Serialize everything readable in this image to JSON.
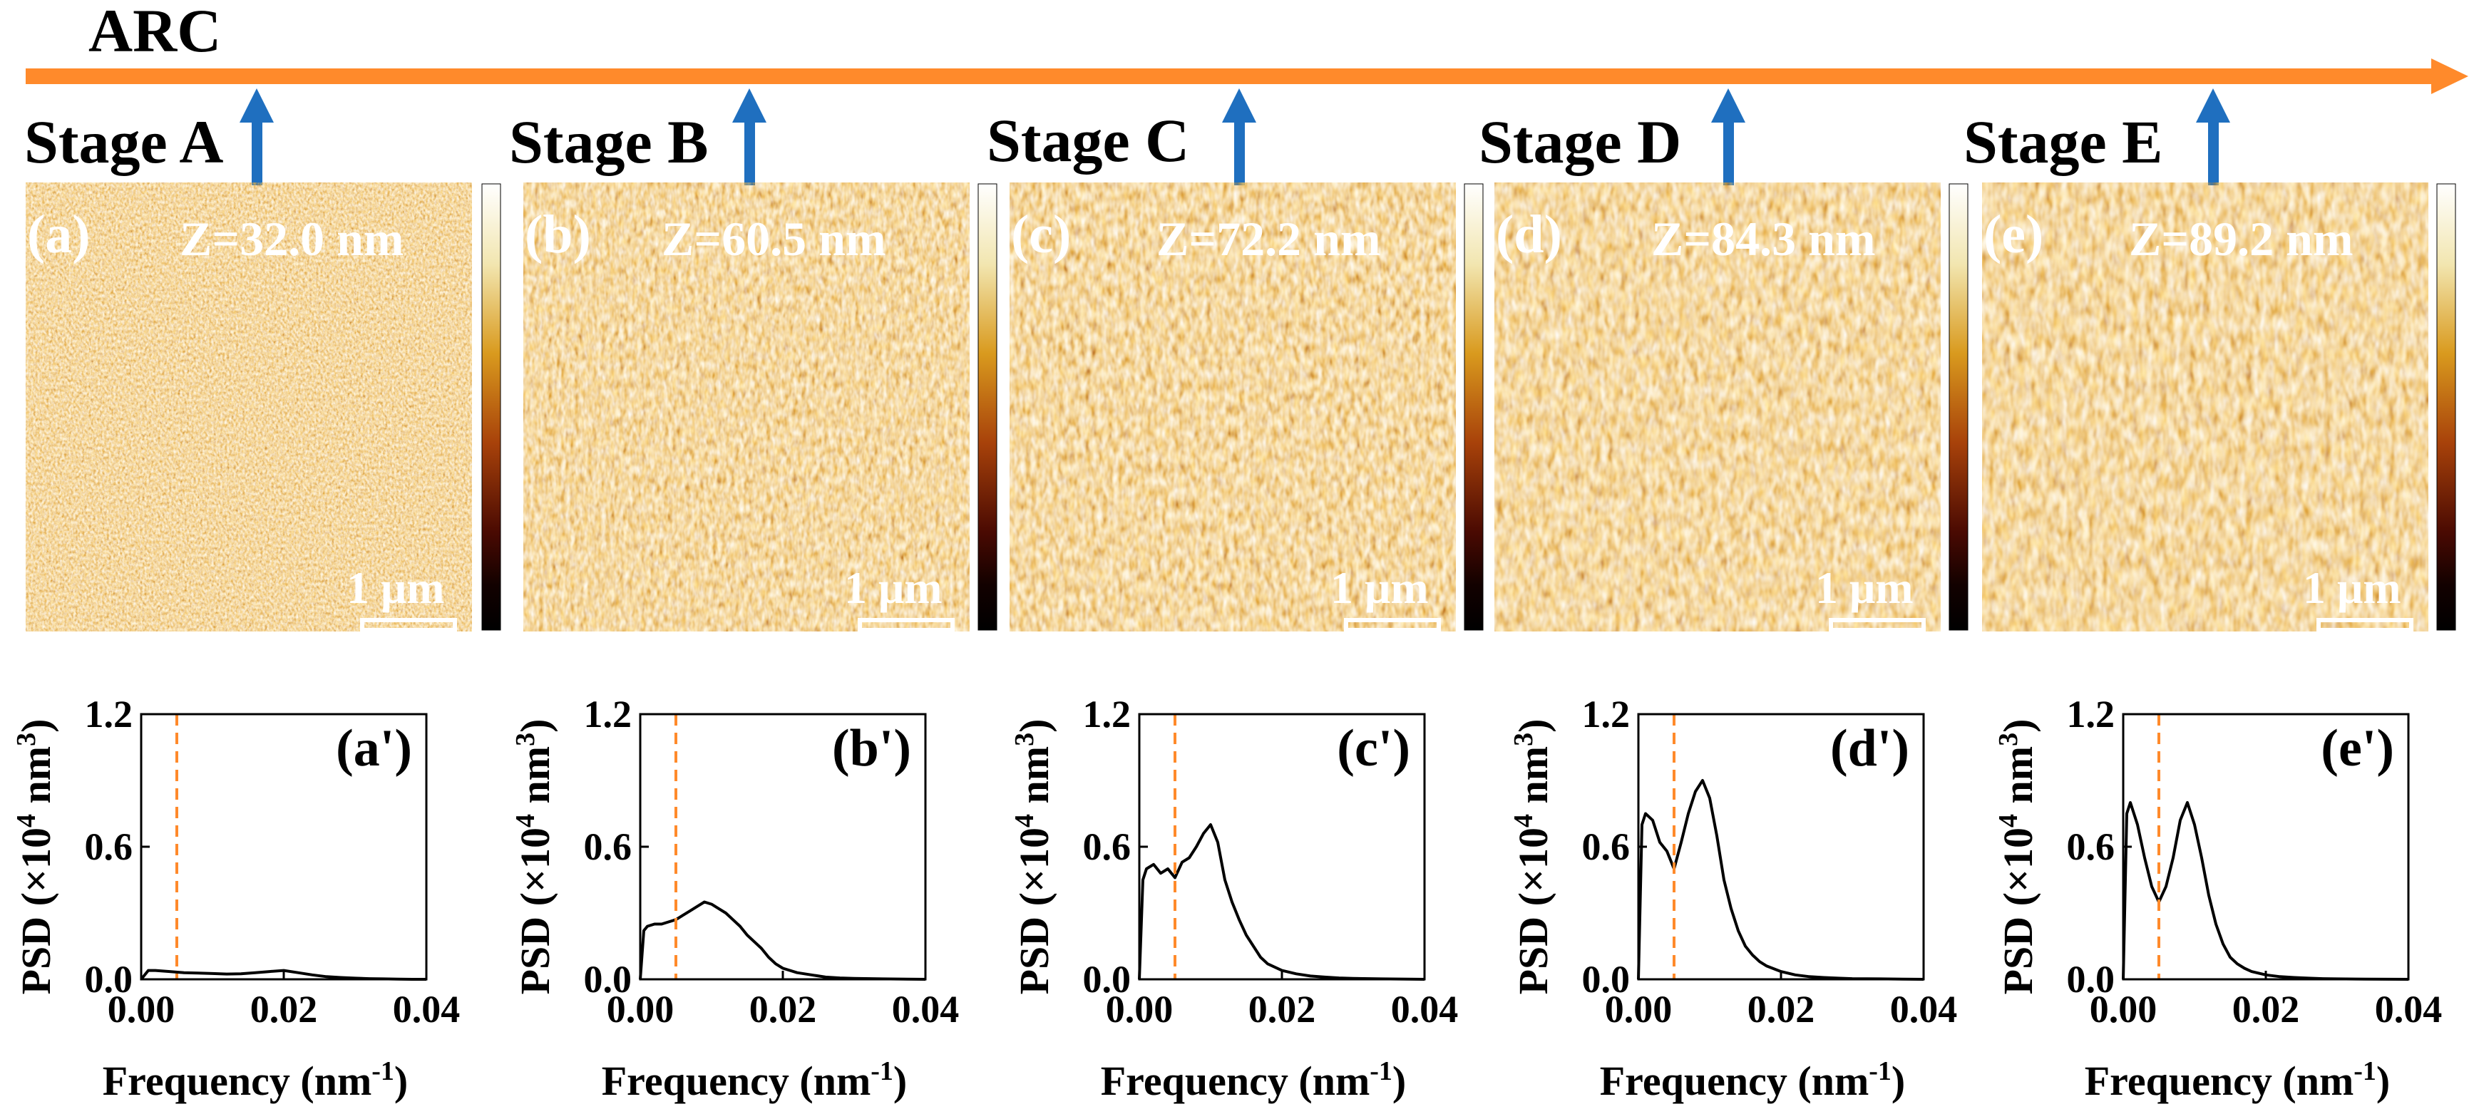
{
  "header": {
    "label": "ARC",
    "arrow_color": "#ff8a2b",
    "marker_color": "#1f6fbf"
  },
  "afm_unit": "nm",
  "scale_bar": "1 μm",
  "colors": {
    "psd_line": "#000000",
    "threshold_line": "#ff8a2b"
  },
  "stages": [
    {
      "stage_label": "Stage A",
      "afm_label": "(a)",
      "z_value": "32.0",
      "psd_label": "(a')"
    },
    {
      "stage_label": "Stage B",
      "afm_label": "(b)",
      "z_value": "60.5",
      "psd_label": "(b')"
    },
    {
      "stage_label": "Stage C",
      "afm_label": "(c)",
      "z_value": "72.2",
      "psd_label": "(c')"
    },
    {
      "stage_label": "Stage D",
      "afm_label": "(d)",
      "z_value": "84.3",
      "psd_label": "(d')"
    },
    {
      "stage_label": "Stage E",
      "afm_label": "(e)",
      "z_value": "89.2",
      "psd_label": "(e')"
    }
  ],
  "chart_data": [
    {
      "type": "line",
      "panel": "(a')",
      "xlabel": "Frequency (nm-1)",
      "ylabel": "PSD (×104 nm3)",
      "xlim": [
        0,
        0.04
      ],
      "ylim": [
        0,
        1.2
      ],
      "xticks": [
        "0.00",
        "0.02",
        "0.04"
      ],
      "yticks": [
        "0.0",
        "0.6",
        "1.2"
      ],
      "threshold_x": 0.005,
      "series": [
        {
          "name": "PSD",
          "x": [
            0.0,
            0.001,
            0.002,
            0.004,
            0.006,
            0.008,
            0.01,
            0.012,
            0.014,
            0.016,
            0.018,
            0.02,
            0.022,
            0.024,
            0.026,
            0.028,
            0.03,
            0.032,
            0.034,
            0.036,
            0.038,
            0.04
          ],
          "y": [
            0.0,
            0.04,
            0.04,
            0.035,
            0.03,
            0.028,
            0.026,
            0.024,
            0.025,
            0.03,
            0.035,
            0.04,
            0.03,
            0.02,
            0.012,
            0.008,
            0.005,
            0.003,
            0.002,
            0.001,
            0.0,
            0.0
          ]
        }
      ]
    },
    {
      "type": "line",
      "panel": "(b')",
      "xlabel": "Frequency (nm-1)",
      "ylabel": "PSD (×104 nm3)",
      "xlim": [
        0,
        0.04
      ],
      "ylim": [
        0,
        1.2
      ],
      "xticks": [
        "0.00",
        "0.02",
        "0.04"
      ],
      "yticks": [
        "0.0",
        "0.6",
        "1.2"
      ],
      "threshold_x": 0.005,
      "series": [
        {
          "name": "PSD",
          "x": [
            0.0,
            0.0005,
            0.001,
            0.002,
            0.003,
            0.004,
            0.005,
            0.006,
            0.007,
            0.008,
            0.009,
            0.01,
            0.011,
            0.012,
            0.013,
            0.014,
            0.015,
            0.016,
            0.017,
            0.018,
            0.019,
            0.02,
            0.022,
            0.024,
            0.026,
            0.028,
            0.03,
            0.034,
            0.04
          ],
          "y": [
            0.0,
            0.22,
            0.24,
            0.25,
            0.25,
            0.26,
            0.27,
            0.29,
            0.31,
            0.33,
            0.35,
            0.34,
            0.32,
            0.3,
            0.27,
            0.24,
            0.2,
            0.17,
            0.14,
            0.1,
            0.07,
            0.05,
            0.03,
            0.02,
            0.01,
            0.006,
            0.004,
            0.002,
            0.0
          ]
        }
      ]
    },
    {
      "type": "line",
      "panel": "(c')",
      "xlabel": "Frequency (nm-1)",
      "ylabel": "PSD (×104 nm3)",
      "xlim": [
        0,
        0.04
      ],
      "ylim": [
        0,
        1.2
      ],
      "xticks": [
        "0.00",
        "0.02",
        "0.04"
      ],
      "yticks": [
        "0.0",
        "0.6",
        "1.2"
      ],
      "threshold_x": 0.005,
      "series": [
        {
          "name": "PSD",
          "x": [
            0.0,
            0.0005,
            0.001,
            0.002,
            0.003,
            0.004,
            0.005,
            0.006,
            0.007,
            0.008,
            0.009,
            0.01,
            0.011,
            0.012,
            0.013,
            0.014,
            0.015,
            0.016,
            0.017,
            0.018,
            0.02,
            0.022,
            0.024,
            0.026,
            0.028,
            0.03,
            0.034,
            0.04
          ],
          "y": [
            0.0,
            0.45,
            0.5,
            0.52,
            0.48,
            0.5,
            0.46,
            0.53,
            0.55,
            0.6,
            0.66,
            0.7,
            0.62,
            0.45,
            0.35,
            0.27,
            0.2,
            0.15,
            0.1,
            0.07,
            0.04,
            0.025,
            0.015,
            0.01,
            0.006,
            0.004,
            0.002,
            0.0
          ]
        }
      ]
    },
    {
      "type": "line",
      "panel": "(d')",
      "xlabel": "Frequency (nm-1)",
      "ylabel": "PSD (×104 nm3)",
      "xlim": [
        0,
        0.04
      ],
      "ylim": [
        0,
        1.2
      ],
      "xticks": [
        "0.00",
        "0.02",
        "0.04"
      ],
      "yticks": [
        "0.0",
        "0.6",
        "1.2"
      ],
      "threshold_x": 0.005,
      "series": [
        {
          "name": "PSD",
          "x": [
            0.0,
            0.0005,
            0.001,
            0.002,
            0.003,
            0.004,
            0.005,
            0.006,
            0.007,
            0.008,
            0.009,
            0.01,
            0.011,
            0.012,
            0.013,
            0.014,
            0.015,
            0.016,
            0.017,
            0.018,
            0.02,
            0.022,
            0.024,
            0.026,
            0.028,
            0.03,
            0.034,
            0.04
          ],
          "y": [
            0.0,
            0.7,
            0.75,
            0.72,
            0.62,
            0.58,
            0.5,
            0.62,
            0.75,
            0.85,
            0.9,
            0.82,
            0.65,
            0.45,
            0.32,
            0.22,
            0.15,
            0.11,
            0.08,
            0.06,
            0.035,
            0.02,
            0.012,
            0.008,
            0.005,
            0.003,
            0.002,
            0.0
          ]
        }
      ]
    },
    {
      "type": "line",
      "panel": "(e')",
      "xlabel": "Frequency (nm-1)",
      "ylabel": "PSD (×104 nm3)",
      "xlim": [
        0,
        0.04
      ],
      "ylim": [
        0,
        1.2
      ],
      "xticks": [
        "0.00",
        "0.02",
        "0.04"
      ],
      "yticks": [
        "0.0",
        "0.6",
        "1.2"
      ],
      "threshold_x": 0.005,
      "series": [
        {
          "name": "PSD",
          "x": [
            0.0,
            0.0005,
            0.001,
            0.002,
            0.003,
            0.004,
            0.005,
            0.006,
            0.007,
            0.008,
            0.009,
            0.01,
            0.011,
            0.012,
            0.013,
            0.014,
            0.015,
            0.016,
            0.017,
            0.018,
            0.02,
            0.022,
            0.024,
            0.026,
            0.028,
            0.03,
            0.034,
            0.04
          ],
          "y": [
            0.0,
            0.75,
            0.8,
            0.7,
            0.55,
            0.42,
            0.35,
            0.42,
            0.55,
            0.72,
            0.8,
            0.7,
            0.55,
            0.38,
            0.25,
            0.16,
            0.1,
            0.07,
            0.05,
            0.035,
            0.02,
            0.012,
            0.008,
            0.005,
            0.003,
            0.002,
            0.001,
            0.0
          ]
        }
      ]
    }
  ]
}
